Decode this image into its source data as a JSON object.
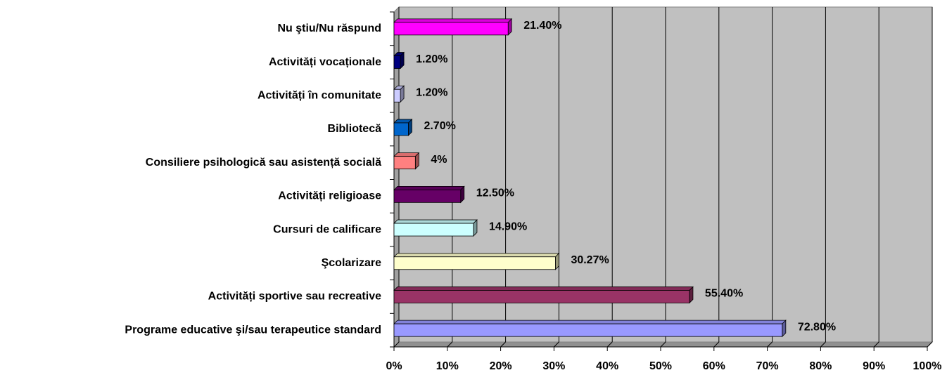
{
  "chart_data": {
    "type": "bar",
    "orientation": "horizontal",
    "categories": [
      "Nu ştiu/Nu răspund",
      "Activități vocaționale",
      "Activități în comunitate",
      "Bibliotecă",
      "Consiliere psihologică sau asistență socială",
      "Activități religioase",
      "Cursuri de calificare",
      "Şcolarizare",
      "Activități sportive sau recreative",
      "Programe educative şi/sau terapeutice standard"
    ],
    "values": [
      21.4,
      1.2,
      1.2,
      2.7,
      4,
      12.5,
      14.9,
      30.27,
      55.4,
      72.8
    ],
    "value_labels": [
      "21.40%",
      "1.20%",
      "1.20%",
      "2.70%",
      "4%",
      "12.50%",
      "14.90%",
      "30.27%",
      "55.40%",
      "72.80%"
    ],
    "colors": [
      "#ff00ff",
      "#000080",
      "#ccccff",
      "#0066cc",
      "#ff8080",
      "#660066",
      "#ccffff",
      "#ffffcc",
      "#993366",
      "#9999ff"
    ],
    "xlim": [
      0,
      100
    ],
    "xticks": [
      {
        "value": 0,
        "label": "0%"
      },
      {
        "value": 10,
        "label": "10%"
      },
      {
        "value": 20,
        "label": "20%"
      },
      {
        "value": 30,
        "label": "30%"
      },
      {
        "value": 40,
        "label": "40%"
      },
      {
        "value": 50,
        "label": "50%"
      },
      {
        "value": 60,
        "label": "60%"
      },
      {
        "value": 70,
        "label": "70%"
      },
      {
        "value": 80,
        "label": "80%"
      },
      {
        "value": 90,
        "label": "90%"
      },
      {
        "value": 100,
        "label": "100%"
      }
    ],
    "grid": true
  }
}
